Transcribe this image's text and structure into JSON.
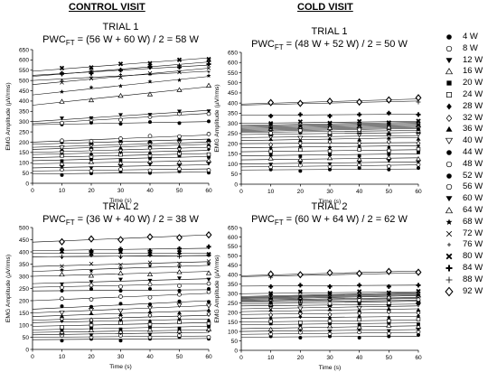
{
  "headers": {
    "control": "CONTROL VISIT",
    "cold": "COLD VISIT"
  },
  "formula_base": "PWC",
  "formula_sub": "FT",
  "chart_data": [
    {
      "id": "control-trial1",
      "type": "scatter",
      "title": "TRIAL 1",
      "formula_rest": "= (56 W + 60 W) / 2 = 58 W",
      "xlabel": "Time (s)",
      "ylabel": "EMG Amplitude (µV/rms)",
      "xlim": [
        0,
        60
      ],
      "ylim": [
        0,
        650
      ],
      "xticks": [
        0,
        10,
        20,
        30,
        40,
        50,
        60
      ],
      "yticks": [
        0,
        50,
        100,
        150,
        200,
        250,
        300,
        350,
        400,
        450,
        500,
        550,
        600,
        650
      ],
      "series": [
        {
          "name": "4 W",
          "marker": "filled-circle",
          "y0": 45,
          "y1": 55
        },
        {
          "name": "8 W",
          "marker": "open-circle",
          "y0": 60,
          "y1": 70
        },
        {
          "name": "12 W",
          "marker": "filled-tri-down",
          "y0": 75,
          "y1": 90
        },
        {
          "name": "16 W",
          "marker": "open-tri-up",
          "y0": 95,
          "y1": 110
        },
        {
          "name": "20 W",
          "marker": "filled-square",
          "y0": 110,
          "y1": 130
        },
        {
          "name": "24 W",
          "marker": "open-square",
          "y0": 125,
          "y1": 145
        },
        {
          "name": "28 W",
          "marker": "filled-diamond",
          "y0": 140,
          "y1": 160
        },
        {
          "name": "32 W",
          "marker": "open-diamond",
          "y0": 150,
          "y1": 175
        },
        {
          "name": "36 W",
          "marker": "filled-tri-up",
          "y0": 165,
          "y1": 190
        },
        {
          "name": "40 W",
          "marker": "open-tri-down",
          "y0": 175,
          "y1": 200
        },
        {
          "name": "44 W",
          "marker": "filled-circle",
          "y0": 190,
          "y1": 215
        },
        {
          "name": "48 W",
          "marker": "open-circle",
          "y0": 200,
          "y1": 235
        },
        {
          "name": "52 W",
          "marker": "filled-circle",
          "y0": 285,
          "y1": 300
        },
        {
          "name": "56 W",
          "marker": "open-circle",
          "y0": 290,
          "y1": 340
        },
        {
          "name": "60 W",
          "marker": "filled-tri-down",
          "y0": 300,
          "y1": 355
        },
        {
          "name": "64 W",
          "marker": "open-tri-up",
          "y0": 380,
          "y1": 470
        },
        {
          "name": "68 W",
          "marker": "star",
          "y0": 430,
          "y1": 520
        },
        {
          "name": "72 W",
          "marker": "x",
          "y0": 480,
          "y1": 560
        },
        {
          "name": "76 W",
          "marker": "plus-small",
          "y0": 500,
          "y1": 545
        },
        {
          "name": "80 W",
          "marker": "x-bold",
          "y0": 545,
          "y1": 610
        },
        {
          "name": "84 W",
          "marker": "plus-bold",
          "y0": 525,
          "y1": 575
        },
        {
          "name": "88 W",
          "marker": "plus",
          "y0": 520,
          "y1": 590
        }
      ]
    },
    {
      "id": "cold-trial1",
      "type": "scatter",
      "title": "TRIAL 1",
      "formula_rest": "= (48 W + 52 W) / 2 = 50 W",
      "xlabel": "Time (s)",
      "ylabel": "EMG Amplitude (µV/rms)",
      "xlim": [
        0,
        60
      ],
      "ylim": [
        0,
        650
      ],
      "xticks": [
        0,
        10,
        20,
        30,
        40,
        50,
        60
      ],
      "yticks": [
        0,
        50,
        100,
        150,
        200,
        250,
        300,
        350,
        400,
        450,
        500,
        550,
        600,
        650
      ],
      "series": [
        {
          "name": "4 W",
          "marker": "filled-circle",
          "y0": 70,
          "y1": 75
        },
        {
          "name": "8 W",
          "marker": "open-circle",
          "y0": 85,
          "y1": 95
        },
        {
          "name": "12 W",
          "marker": "filled-tri-down",
          "y0": 100,
          "y1": 110
        },
        {
          "name": "16 W",
          "marker": "open-tri-up",
          "y0": 120,
          "y1": 130
        },
        {
          "name": "20 W",
          "marker": "filled-square",
          "y0": 140,
          "y1": 150
        },
        {
          "name": "24 W",
          "marker": "open-square",
          "y0": 160,
          "y1": 170
        },
        {
          "name": "28 W",
          "marker": "filled-diamond",
          "y0": 180,
          "y1": 190
        },
        {
          "name": "32 W",
          "marker": "open-diamond",
          "y0": 200,
          "y1": 205
        },
        {
          "name": "36 W",
          "marker": "filled-tri-up",
          "y0": 215,
          "y1": 230
        },
        {
          "name": "40 W",
          "marker": "open-tri-down",
          "y0": 230,
          "y1": 240
        },
        {
          "name": "44 W",
          "marker": "filled-circle",
          "y0": 245,
          "y1": 255
        },
        {
          "name": "48 W",
          "marker": "open-circle",
          "y0": 255,
          "y1": 265
        },
        {
          "name": "52 W",
          "marker": "filled-circle",
          "y0": 260,
          "y1": 275
        },
        {
          "name": "56 W",
          "marker": "open-circle",
          "y0": 265,
          "y1": 280
        },
        {
          "name": "60 W",
          "marker": "filled-tri-down",
          "y0": 270,
          "y1": 285
        },
        {
          "name": "64 W",
          "marker": "open-tri-up",
          "y0": 275,
          "y1": 290
        },
        {
          "name": "68 W",
          "marker": "star",
          "y0": 280,
          "y1": 295
        },
        {
          "name": "72 W",
          "marker": "x",
          "y0": 285,
          "y1": 300
        },
        {
          "name": "76 W",
          "marker": "plus-small",
          "y0": 290,
          "y1": 305
        },
        {
          "name": "80 W",
          "marker": "x-bold",
          "y0": 300,
          "y1": 310
        },
        {
          "name": "84 W",
          "marker": "plus-bold",
          "y0": 340,
          "y1": 345
        },
        {
          "name": "88 W",
          "marker": "plus",
          "y0": 390,
          "y1": 410
        },
        {
          "name": "92 W",
          "marker": "open-diamond-large",
          "y0": 395,
          "y1": 420
        }
      ]
    },
    {
      "id": "control-trial2",
      "type": "scatter",
      "title": "TRIAL 2",
      "formula_rest": "= (36 W + 40 W) / 2 = 38 W",
      "xlabel": "Time (s)",
      "ylabel": "EMG Amplitude (µV/rms)",
      "xlim": [
        0,
        60
      ],
      "ylim": [
        0,
        500
      ],
      "xticks": [
        0,
        10,
        20,
        30,
        40,
        50,
        60
      ],
      "yticks": [
        0,
        50,
        100,
        150,
        200,
        250,
        300,
        350,
        400,
        450,
        500
      ],
      "series": [
        {
          "name": "4 W",
          "marker": "filled-circle",
          "y0": 40,
          "y1": 45
        },
        {
          "name": "8 W",
          "marker": "open-circle",
          "y0": 50,
          "y1": 55
        },
        {
          "name": "12 W",
          "marker": "filled-tri-down",
          "y0": 60,
          "y1": 70
        },
        {
          "name": "16 W",
          "marker": "open-tri-up",
          "y0": 70,
          "y1": 80
        },
        {
          "name": "20 W",
          "marker": "filled-square",
          "y0": 80,
          "y1": 95
        },
        {
          "name": "24 W",
          "marker": "open-square",
          "y0": 95,
          "y1": 110
        },
        {
          "name": "28 W",
          "marker": "filled-diamond",
          "y0": 110,
          "y1": 125
        },
        {
          "name": "32 W",
          "marker": "open-diamond",
          "y0": 120,
          "y1": 140
        },
        {
          "name": "36 W",
          "marker": "filled-tri-up",
          "y0": 135,
          "y1": 160
        },
        {
          "name": "40 W",
          "marker": "open-tri-down",
          "y0": 150,
          "y1": 180
        },
        {
          "name": "44 W",
          "marker": "filled-circle",
          "y0": 165,
          "y1": 200
        },
        {
          "name": "48 W",
          "marker": "open-circle",
          "y0": 200,
          "y1": 230
        },
        {
          "name": "52 W",
          "marker": "filled-circle",
          "y0": 240,
          "y1": 245
        },
        {
          "name": "56 W",
          "marker": "open-circle",
          "y0": 255,
          "y1": 270
        },
        {
          "name": "60 W",
          "marker": "filled-tri-down",
          "y0": 270,
          "y1": 290
        },
        {
          "name": "64 W",
          "marker": "open-tri-up",
          "y0": 300,
          "y1": 320
        },
        {
          "name": "68 W",
          "marker": "star",
          "y0": 320,
          "y1": 345
        },
        {
          "name": "72 W",
          "marker": "x",
          "y0": 340,
          "y1": 360
        },
        {
          "name": "76 W",
          "marker": "plus-small",
          "y0": 380,
          "y1": 385
        },
        {
          "name": "80 W",
          "marker": "x-bold",
          "y0": 395,
          "y1": 395
        },
        {
          "name": "84 W",
          "marker": "plus-bold",
          "y0": 405,
          "y1": 415
        },
        {
          "name": "88 W",
          "marker": "plus",
          "y0": 380,
          "y1": 385
        },
        {
          "name": "92 W",
          "marker": "open-diamond-large",
          "y0": 440,
          "y1": 470
        }
      ]
    },
    {
      "id": "cold-trial2",
      "type": "scatter",
      "title": "TRIAL 2",
      "formula_rest": "= (60 W + 64 W) / 2 = 62 W",
      "xlabel": "Time (s)",
      "ylabel": "EMG Amplitude (µV/rms)",
      "xlim": [
        0,
        60
      ],
      "ylim": [
        0,
        650
      ],
      "xticks": [
        0,
        10,
        20,
        30,
        40,
        50,
        60
      ],
      "yticks": [
        0,
        50,
        100,
        150,
        200,
        250,
        300,
        350,
        400,
        450,
        500,
        550,
        600,
        650
      ],
      "series": [
        {
          "name": "4 W",
          "marker": "filled-circle",
          "y0": 70,
          "y1": 75
        },
        {
          "name": "8 W",
          "marker": "open-circle",
          "y0": 85,
          "y1": 95
        },
        {
          "name": "12 W",
          "marker": "filled-tri-down",
          "y0": 100,
          "y1": 110
        },
        {
          "name": "16 W",
          "marker": "open-tri-up",
          "y0": 115,
          "y1": 130
        },
        {
          "name": "20 W",
          "marker": "filled-square",
          "y0": 135,
          "y1": 145
        },
        {
          "name": "24 W",
          "marker": "open-square",
          "y0": 150,
          "y1": 160
        },
        {
          "name": "28 W",
          "marker": "filled-diamond",
          "y0": 170,
          "y1": 180
        },
        {
          "name": "32 W",
          "marker": "open-diamond",
          "y0": 190,
          "y1": 200
        },
        {
          "name": "36 W",
          "marker": "filled-tri-up",
          "y0": 205,
          "y1": 220
        },
        {
          "name": "40 W",
          "marker": "open-tri-down",
          "y0": 220,
          "y1": 235
        },
        {
          "name": "44 W",
          "marker": "filled-circle",
          "y0": 235,
          "y1": 245
        },
        {
          "name": "48 W",
          "marker": "open-circle",
          "y0": 245,
          "y1": 260
        },
        {
          "name": "52 W",
          "marker": "filled-circle",
          "y0": 255,
          "y1": 265
        },
        {
          "name": "56 W",
          "marker": "open-circle",
          "y0": 260,
          "y1": 275
        },
        {
          "name": "60 W",
          "marker": "filled-tri-down",
          "y0": 265,
          "y1": 280
        },
        {
          "name": "64 W",
          "marker": "open-tri-up",
          "y0": 270,
          "y1": 290
        },
        {
          "name": "68 W",
          "marker": "star",
          "y0": 275,
          "y1": 295
        },
        {
          "name": "72 W",
          "marker": "x",
          "y0": 280,
          "y1": 300
        },
        {
          "name": "76 W",
          "marker": "plus-small",
          "y0": 285,
          "y1": 305
        },
        {
          "name": "80 W",
          "marker": "x-bold",
          "y0": 300,
          "y1": 310
        },
        {
          "name": "84 W",
          "marker": "plus-bold",
          "y0": 340,
          "y1": 345
        },
        {
          "name": "88 W",
          "marker": "plus",
          "y0": 390,
          "y1": 410
        },
        {
          "name": "92 W",
          "marker": "open-diamond-large",
          "y0": 395,
          "y1": 420
        }
      ]
    }
  ],
  "legend": [
    {
      "label": "4 W",
      "marker": "filled-circle"
    },
    {
      "label": "8 W",
      "marker": "open-circle"
    },
    {
      "label": "12 W",
      "marker": "filled-tri-down"
    },
    {
      "label": "16 W",
      "marker": "open-tri-up"
    },
    {
      "label": "20 W",
      "marker": "filled-square"
    },
    {
      "label": "24 W",
      "marker": "open-square"
    },
    {
      "label": "28 W",
      "marker": "filled-diamond"
    },
    {
      "label": "32 W",
      "marker": "open-diamond"
    },
    {
      "label": "36 W",
      "marker": "filled-tri-up"
    },
    {
      "label": "40 W",
      "marker": "open-tri-down"
    },
    {
      "label": "44 W",
      "marker": "filled-circle"
    },
    {
      "label": "48 W",
      "marker": "open-circle"
    },
    {
      "label": "52 W",
      "marker": "filled-circle"
    },
    {
      "label": "56 W",
      "marker": "open-circle"
    },
    {
      "label": "60 W",
      "marker": "filled-tri-down"
    },
    {
      "label": "64 W",
      "marker": "open-tri-up"
    },
    {
      "label": "68 W",
      "marker": "star"
    },
    {
      "label": "72 W",
      "marker": "x"
    },
    {
      "label": "76 W",
      "marker": "plus-small"
    },
    {
      "label": "80 W",
      "marker": "x-bold"
    },
    {
      "label": "84 W",
      "marker": "plus-bold"
    },
    {
      "label": "88 W",
      "marker": "plus"
    },
    {
      "label": "92 W",
      "marker": "open-diamond-large"
    }
  ]
}
